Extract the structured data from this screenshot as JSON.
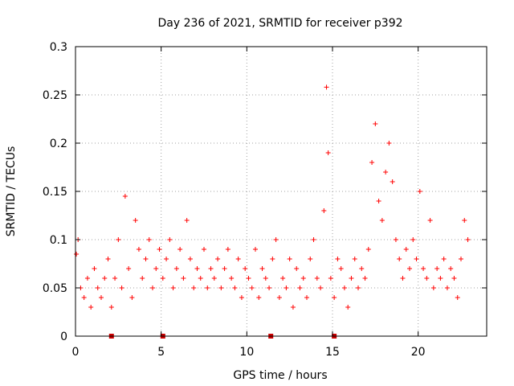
{
  "chart_data": {
    "type": "scatter",
    "title": "Day 236 of 2021, SRMTID for receiver p392",
    "xlabel": "GPS time / hours",
    "ylabel": "SRMTID / TECUs",
    "xlim": [
      0,
      24
    ],
    "ylim": [
      0,
      0.3
    ],
    "x_ticks": [
      0,
      5,
      10,
      15,
      20
    ],
    "x_tick_labels": [
      "0",
      "5",
      "10",
      "15",
      "20"
    ],
    "y_ticks": [
      0,
      0.05,
      0.1,
      0.15,
      0.2,
      0.25,
      0.3
    ],
    "y_tick_labels": [
      "0",
      "0.05",
      "0.1",
      "0.15",
      "0.2",
      "0.25",
      "0.3"
    ],
    "grid": true,
    "marker": "plus",
    "color": "#ff0000",
    "series": [
      {
        "name": "SRMTID",
        "x": [
          0.05,
          0.15,
          0.3,
          0.5,
          0.7,
          0.9,
          1.1,
          1.3,
          1.5,
          1.7,
          1.9,
          2.1,
          2.3,
          2.5,
          2.7,
          2.9,
          3.1,
          3.3,
          3.5,
          3.7,
          3.9,
          4.1,
          4.3,
          4.5,
          4.7,
          4.9,
          5.1,
          5.3,
          5.5,
          5.7,
          5.9,
          6.1,
          6.3,
          6.5,
          6.7,
          6.9,
          7.1,
          7.3,
          7.5,
          7.7,
          7.9,
          8.1,
          8.3,
          8.5,
          8.7,
          8.9,
          9.1,
          9.3,
          9.5,
          9.7,
          9.9,
          10.1,
          10.3,
          10.5,
          10.7,
          10.9,
          11.1,
          11.3,
          11.5,
          11.7,
          11.9,
          12.1,
          12.3,
          12.5,
          12.7,
          12.9,
          13.1,
          13.3,
          13.5,
          13.7,
          13.9,
          14.1,
          14.3,
          14.5,
          14.65,
          14.75,
          14.9,
          15.1,
          15.3,
          15.5,
          15.7,
          15.9,
          16.1,
          16.3,
          16.5,
          16.7,
          16.9,
          17.1,
          17.3,
          17.5,
          17.7,
          17.9,
          18.1,
          18.3,
          18.5,
          18.7,
          18.9,
          19.1,
          19.3,
          19.5,
          19.7,
          19.9,
          20.1,
          20.3,
          20.5,
          20.7,
          20.9,
          21.1,
          21.3,
          21.5,
          21.7,
          21.9,
          22.1,
          22.3,
          22.5,
          22.7,
          22.9
        ],
        "y": [
          0.085,
          0.1,
          0.05,
          0.04,
          0.06,
          0.03,
          0.07,
          0.05,
          0.04,
          0.06,
          0.08,
          0.03,
          0.06,
          0.1,
          0.05,
          0.145,
          0.07,
          0.04,
          0.12,
          0.09,
          0.06,
          0.08,
          0.1,
          0.05,
          0.07,
          0.09,
          0.06,
          0.08,
          0.1,
          0.05,
          0.07,
          0.09,
          0.06,
          0.12,
          0.08,
          0.05,
          0.07,
          0.06,
          0.09,
          0.05,
          0.07,
          0.06,
          0.08,
          0.05,
          0.07,
          0.09,
          0.06,
          0.05,
          0.08,
          0.04,
          0.07,
          0.06,
          0.05,
          0.09,
          0.04,
          0.07,
          0.06,
          0.05,
          0.08,
          0.1,
          0.04,
          0.06,
          0.05,
          0.08,
          0.03,
          0.07,
          0.05,
          0.06,
          0.04,
          0.08,
          0.1,
          0.06,
          0.05,
          0.13,
          0.258,
          0.19,
          0.06,
          0.04,
          0.08,
          0.07,
          0.05,
          0.03,
          0.06,
          0.08,
          0.05,
          0.07,
          0.06,
          0.09,
          0.18,
          0.22,
          0.14,
          0.12,
          0.17,
          0.2,
          0.16,
          0.1,
          0.08,
          0.06,
          0.09,
          0.07,
          0.1,
          0.08,
          0.15,
          0.07,
          0.06,
          0.12,
          0.05,
          0.07,
          0.06,
          0.08,
          0.05,
          0.07,
          0.06,
          0.04,
          0.08,
          0.12,
          0.1
        ]
      }
    ],
    "bottom_markers_x": [
      2.1,
      5.1,
      11.4,
      15.1
    ]
  }
}
